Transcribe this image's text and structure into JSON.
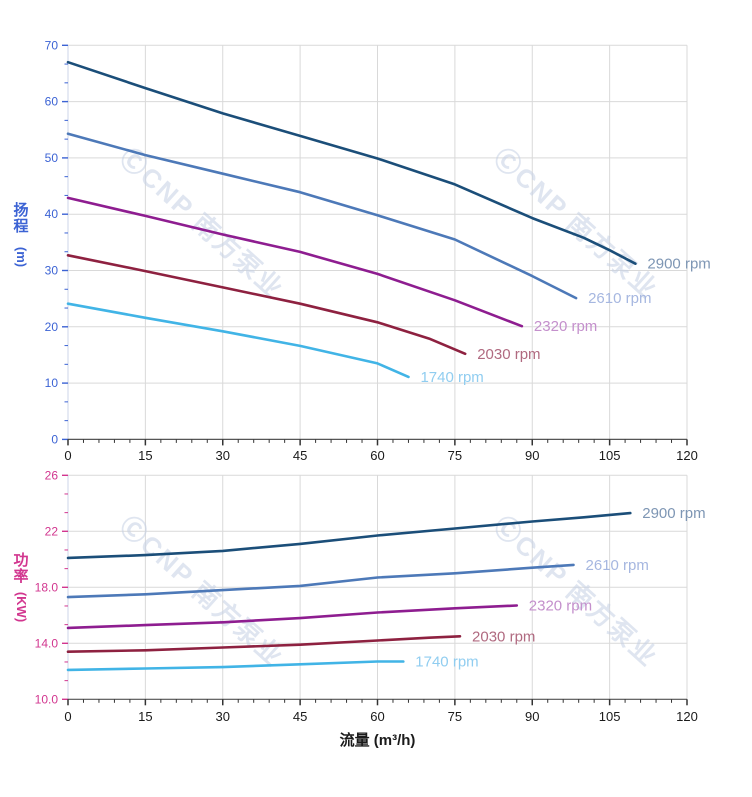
{
  "flow_axis": {
    "title": "流量 (m³/h)"
  },
  "watermark": {
    "text": "ⒸCNP 南方泵业",
    "color": "#c6d1e4"
  },
  "style": {
    "background": "#ffffff",
    "grid_color": "#d9d9d9",
    "x_axis_line_color": "#555555",
    "x_tick_color": "#333333",
    "x_label_color": "#1a1a1a"
  },
  "chart_data": [
    {
      "type": "line",
      "title": "",
      "xlabel": "流量 (m³/h)",
      "ylabel": "扬程 (m)",
      "ylabel_line1": "扬",
      "ylabel_line2": "程",
      "ylabel_unit": "(m)",
      "axis_color": "#3c63d4",
      "grid": true,
      "legend_position": "end-of-line",
      "xlim": [
        0,
        120
      ],
      "ylim": [
        0,
        70
      ],
      "x_major_ticks": [
        0,
        15,
        30,
        45,
        60,
        75,
        90,
        105,
        120
      ],
      "x_minor_step": 3,
      "y_ticks": {
        "values": [
          0,
          10,
          20,
          30,
          40,
          50,
          60,
          70
        ],
        "labels": [
          "0",
          "10",
          "20",
          "30",
          "40",
          "50",
          "60",
          "70"
        ]
      },
      "series": [
        {
          "name": "2900 rpm",
          "color": "#1b4e79",
          "label_color": "#7e96b4",
          "points": [
            [
              0,
              67
            ],
            [
              15,
              62.4
            ],
            [
              30,
              57.9
            ],
            [
              45,
              53.9
            ],
            [
              60,
              49.9
            ],
            [
              75,
              45.3
            ],
            [
              90,
              39.3
            ],
            [
              100,
              35.8
            ],
            [
              105,
              33.6
            ],
            [
              110,
              31.2
            ]
          ]
        },
        {
          "name": "2610 rpm",
          "color": "#4d79b8",
          "label_color": "#a6b7e0",
          "points": [
            [
              0,
              54.3
            ],
            [
              15,
              50.5
            ],
            [
              30,
              47.2
            ],
            [
              45,
              43.9
            ],
            [
              60,
              39.8
            ],
            [
              75,
              35.5
            ],
            [
              90,
              29.0
            ],
            [
              98.5,
              25.1
            ]
          ]
        },
        {
          "name": "2320 rpm",
          "color": "#8e1d90",
          "label_color": "#c490cc",
          "points": [
            [
              0,
              42.9
            ],
            [
              15,
              39.7
            ],
            [
              30,
              36.4
            ],
            [
              45,
              33.3
            ],
            [
              60,
              29.4
            ],
            [
              75,
              24.7
            ],
            [
              88,
              20.1
            ]
          ]
        },
        {
          "name": "2030 rpm",
          "color": "#8e2140",
          "label_color": "#b06a80",
          "points": [
            [
              0,
              32.7
            ],
            [
              15,
              29.9
            ],
            [
              30,
              27.0
            ],
            [
              45,
              24.1
            ],
            [
              60,
              20.8
            ],
            [
              70,
              17.9
            ],
            [
              77,
              15.2
            ]
          ]
        },
        {
          "name": "1740 rpm",
          "color": "#41b4e6",
          "label_color": "#90cdf0",
          "points": [
            [
              0,
              24.1
            ],
            [
              15,
              21.6
            ],
            [
              30,
              19.2
            ],
            [
              45,
              16.6
            ],
            [
              60,
              13.5
            ],
            [
              66,
              11.1
            ]
          ]
        }
      ]
    },
    {
      "type": "line",
      "title": "",
      "xlabel": "流量 (m³/h)",
      "ylabel": "功率 (KW)",
      "ylabel_line1": "功",
      "ylabel_line2": "率",
      "ylabel_unit": "(KW)",
      "axis_color": "#d2368f",
      "grid": true,
      "legend_position": "end-of-line",
      "xlim": [
        0,
        120
      ],
      "ylim": [
        10,
        26
      ],
      "x_major_ticks": [
        0,
        15,
        30,
        45,
        60,
        75,
        90,
        105,
        120
      ],
      "x_minor_step": 3,
      "y_ticks": {
        "values": [
          10,
          14,
          18,
          22,
          26
        ],
        "labels": [
          "10.0",
          "14.0",
          "18.0",
          "22",
          "26"
        ]
      },
      "series": [
        {
          "name": "2900 rpm",
          "color": "#1b4e79",
          "label_color": "#7e96b4",
          "points": [
            [
              0,
              20.1
            ],
            [
              15,
              20.3
            ],
            [
              30,
              20.6
            ],
            [
              45,
              21.1
            ],
            [
              60,
              21.7
            ],
            [
              75,
              22.2
            ],
            [
              90,
              22.7
            ],
            [
              100,
              23.0
            ],
            [
              109,
              23.3
            ]
          ]
        },
        {
          "name": "2610 rpm",
          "color": "#4d79b8",
          "label_color": "#a6b7e0",
          "points": [
            [
              0,
              17.3
            ],
            [
              15,
              17.5
            ],
            [
              30,
              17.8
            ],
            [
              45,
              18.1
            ],
            [
              60,
              18.7
            ],
            [
              75,
              19.0
            ],
            [
              90,
              19.4
            ],
            [
              98,
              19.6
            ]
          ]
        },
        {
          "name": "2320 rpm",
          "color": "#8e1d90",
          "label_color": "#c490cc",
          "points": [
            [
              0,
              15.1
            ],
            [
              15,
              15.3
            ],
            [
              30,
              15.5
            ],
            [
              45,
              15.8
            ],
            [
              60,
              16.2
            ],
            [
              75,
              16.5
            ],
            [
              87,
              16.7
            ]
          ]
        },
        {
          "name": "2030 rpm",
          "color": "#8e2140",
          "label_color": "#b06a80",
          "points": [
            [
              0,
              13.4
            ],
            [
              15,
              13.5
            ],
            [
              30,
              13.7
            ],
            [
              45,
              13.9
            ],
            [
              60,
              14.2
            ],
            [
              70,
              14.4
            ],
            [
              76,
              14.5
            ]
          ]
        },
        {
          "name": "1740 rpm",
          "color": "#41b4e6",
          "label_color": "#90cdf0",
          "points": [
            [
              0,
              12.1
            ],
            [
              15,
              12.2
            ],
            [
              30,
              12.3
            ],
            [
              45,
              12.5
            ],
            [
              60,
              12.7
            ],
            [
              65,
              12.7
            ]
          ]
        }
      ]
    }
  ]
}
